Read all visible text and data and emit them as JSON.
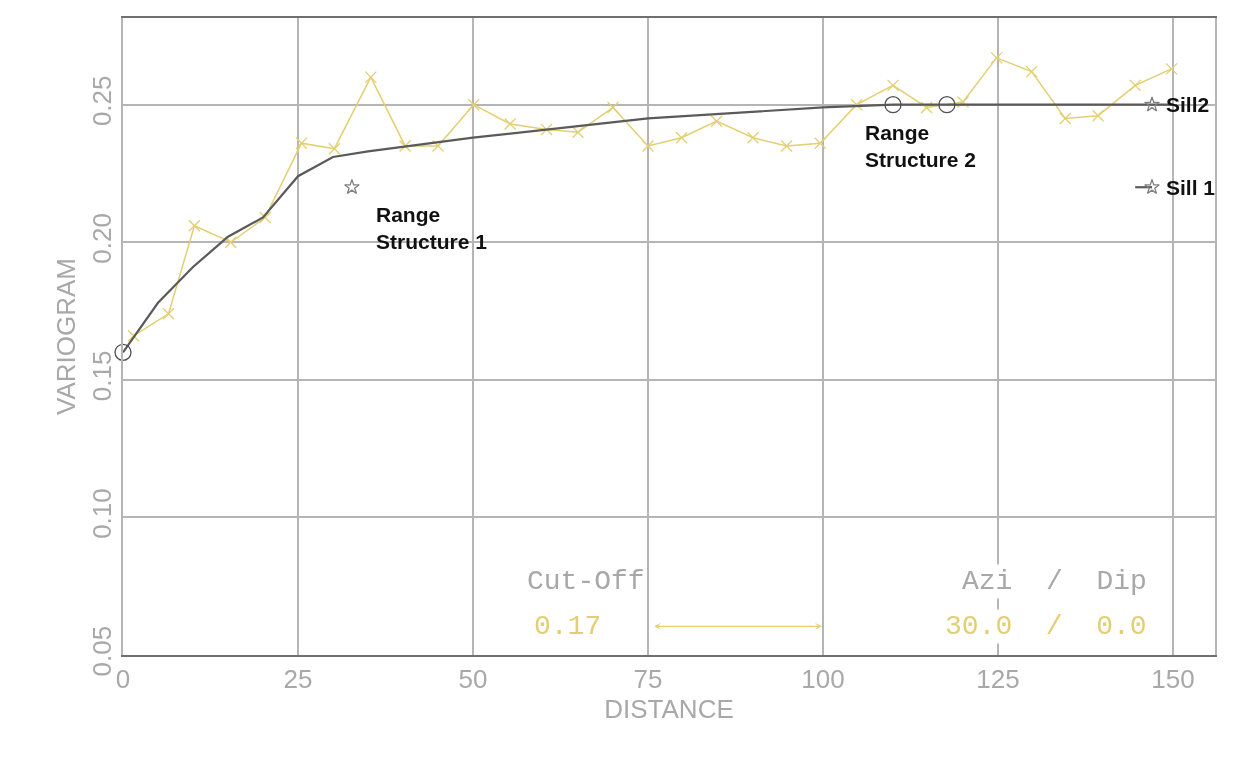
{
  "chart_data": {
    "type": "line",
    "xlabel": "DISTANCE",
    "ylabel": "VARIOGRAM",
    "xlim": [
      0,
      156
    ],
    "xticks": [
      0,
      25,
      50,
      75,
      100,
      125,
      150
    ],
    "ylim": [
      0.05,
      0.2815
    ],
    "yticks": [
      0.05,
      {
        "value": 0.1,
        "label": "0.10"
      },
      0.15,
      {
        "value": 0.2,
        "label": "0.20"
      },
      0.25
    ],
    "grid": true,
    "series": [
      {
        "color": "#e3cf72",
        "marker": "cross",
        "line_style": "solid",
        "x": [
          1.5,
          6.5,
          10.2,
          15.4,
          20.3,
          25.5,
          30.2,
          35.4,
          40.3,
          45.0,
          50.1,
          55.3,
          60.5,
          65.0,
          70.0,
          75.0,
          79.8,
          84.8,
          90.0,
          94.8,
          99.6,
          104.8,
          110.0,
          114.8,
          120.0,
          124.8,
          129.8,
          134.6,
          139.3,
          144.6,
          149.8
        ],
        "values": [
          0.166,
          0.174,
          0.206,
          0.2,
          0.209,
          0.236,
          0.234,
          0.26,
          0.235,
          0.235,
          0.25,
          0.243,
          0.241,
          0.24,
          0.249,
          0.235,
          0.238,
          0.244,
          0.238,
          0.235,
          0.236,
          0.25,
          0.257,
          0.249,
          0.251,
          0.267,
          0.262,
          0.245,
          0.246,
          0.257,
          0.263
        ]
      },
      {
        "color": "#5a5a5a",
        "marker": "none",
        "line_style": "solid",
        "x": [
          0,
          5,
          10,
          15,
          20,
          25,
          30,
          35,
          50,
          75,
          100,
          110,
          150
        ],
        "values": [
          0.16,
          0.178,
          0.191,
          0.202,
          0.209,
          0.224,
          0.231,
          0.233,
          0.238,
          0.245,
          0.249,
          0.25,
          0.25
        ]
      },
      {
        "color": "#5a5a5a",
        "marker": "none",
        "line_style": "solid",
        "x": [
          144.6,
          147
        ],
        "values": [
          0.22,
          0.22
        ]
      },
      {
        "type": "scatter",
        "color": "#808080",
        "marker": "star",
        "x": [
          32.7,
          147,
          147
        ],
        "values": [
          0.22,
          0.25,
          0.22
        ]
      },
      {
        "type": "scatter",
        "color": "#505050",
        "marker": "circle",
        "x": [
          0,
          110,
          117.7
        ],
        "values": [
          0.16,
          0.25,
          0.25
        ]
      }
    ],
    "annotations": [
      {
        "text": "Range Structure 1",
        "x": 32.7,
        "y": 0.22
      },
      {
        "text": "Range Structure 2",
        "x": 110,
        "y": 0.25
      },
      {
        "text": "Sill2",
        "x": 147,
        "y": 0.25
      },
      {
        "text": "Sill 1",
        "x": 147,
        "y": 0.22
      },
      "Cut-Off",
      "0.17",
      "Azi / Dip",
      "30.0 / 0.0"
    ]
  }
}
